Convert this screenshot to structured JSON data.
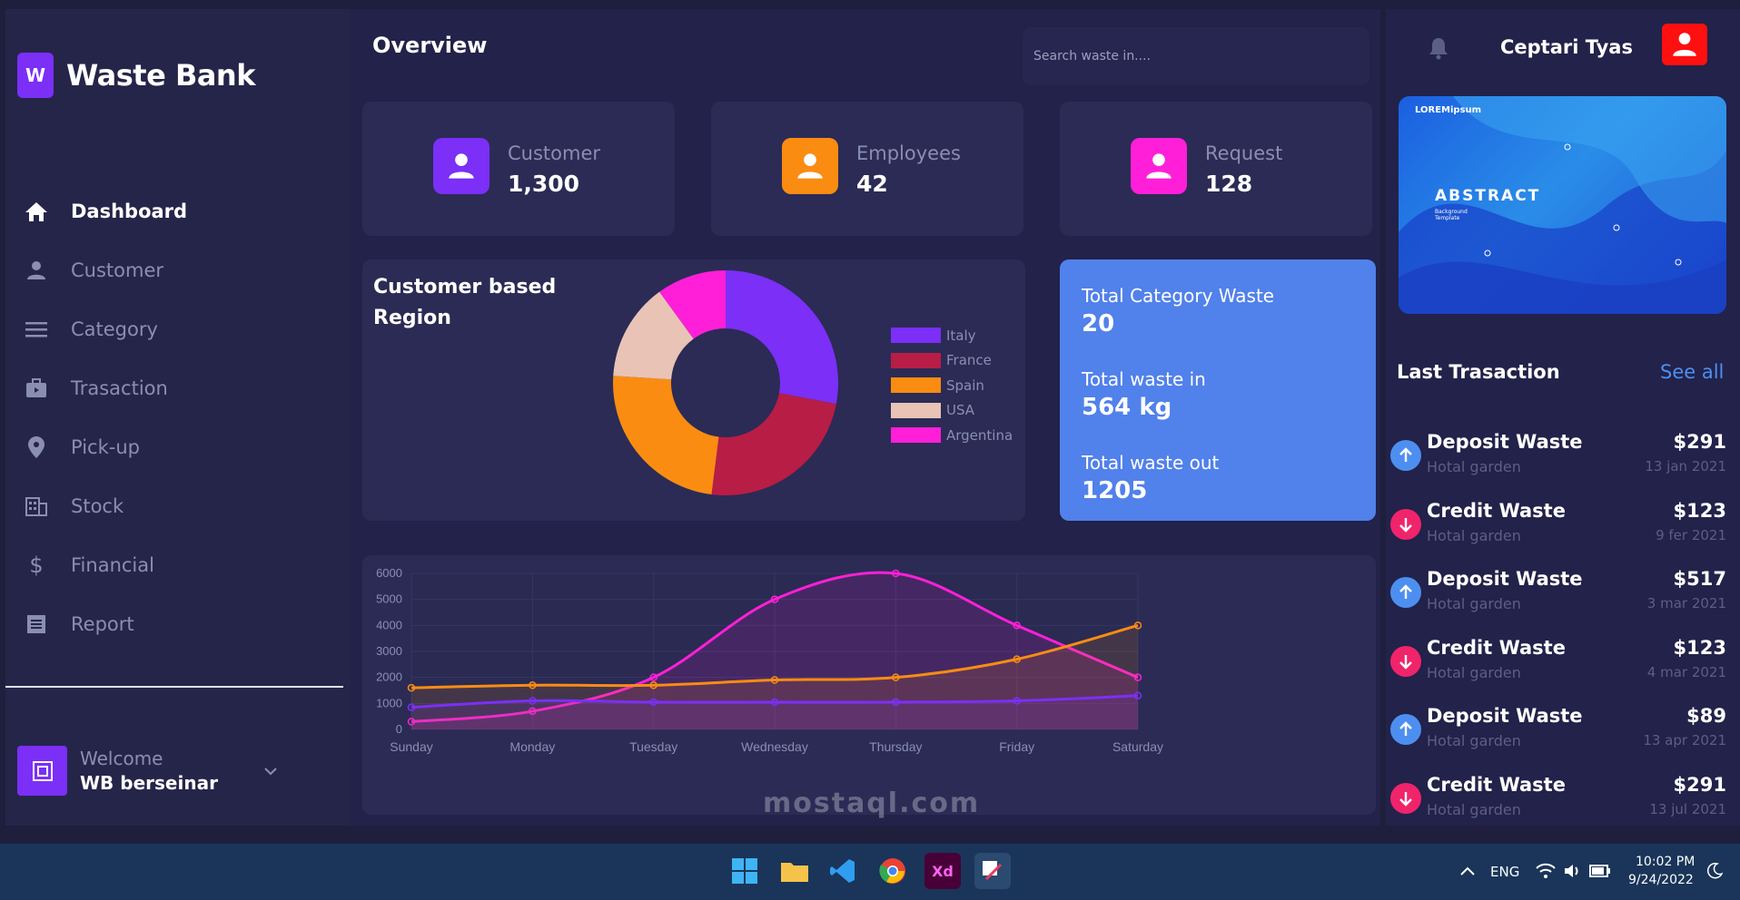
{
  "app": {
    "logo_letter": "W",
    "name": "Waste Bank"
  },
  "sidebar": {
    "items": [
      {
        "label": "Dashboard",
        "icon": "home-icon"
      },
      {
        "label": "Customer",
        "icon": "user-icon"
      },
      {
        "label": "Category",
        "icon": "menu-icon"
      },
      {
        "label": "Trasaction",
        "icon": "briefcase-icon"
      },
      {
        "label": "Pick-up",
        "icon": "location-pin-icon"
      },
      {
        "label": "Stock",
        "icon": "building-icon"
      },
      {
        "label": "Financial",
        "icon": "dollar-icon"
      },
      {
        "label": "Report",
        "icon": "document-icon"
      }
    ],
    "welcome_label": "Welcome",
    "welcome_name": "WB berseinar"
  },
  "header": {
    "title": "Overview",
    "search_placeholder": "Search waste in...."
  },
  "stats": [
    {
      "label": "Customer",
      "value": "1,300",
      "color": "#7b2ff7"
    },
    {
      "label": "Employees",
      "value": "42",
      "color": "#fb8c12"
    },
    {
      "label": "Request",
      "value": "128",
      "color": "#ff1fd8"
    }
  ],
  "region": {
    "title": "Customer based Region",
    "chart_data": {
      "type": "pie",
      "categories": [
        "Italy",
        "France",
        "Spain",
        "USA",
        "Argentina"
      ],
      "values": [
        28,
        24,
        24,
        14,
        10
      ],
      "colors": [
        "#7b2ff7",
        "#b81d45",
        "#fb8c12",
        "#e8c3b6",
        "#ff1fd8"
      ],
      "legend": "right"
    }
  },
  "totals": {
    "category_label": "Total Category Waste",
    "category_value": "20",
    "in_label": "Total waste in",
    "in_value": "564 kg",
    "out_label": "Total waste out",
    "out_value": "1205"
  },
  "weekly_chart": {
    "chart_data": {
      "type": "line",
      "categories": [
        "Sunday",
        "Monday",
        "Tuesday",
        "Wednesday",
        "Thursday",
        "Friday",
        "Saturday"
      ],
      "ylim": [
        0,
        6000
      ],
      "yticks": [
        0,
        1000,
        2000,
        3000,
        4000,
        5000,
        6000
      ],
      "series": [
        {
          "values": [
            300,
            700,
            2000,
            5000,
            6000,
            4000,
            2000
          ],
          "color": "#ff1fd8"
        },
        {
          "values": [
            1600,
            1700,
            1700,
            1900,
            2000,
            2700,
            4000
          ],
          "color": "#fb8c12"
        },
        {
          "values": [
            850,
            1100,
            1050,
            1050,
            1050,
            1100,
            1300
          ],
          "color": "#7b2ff7"
        }
      ],
      "grid": true
    }
  },
  "user": {
    "name": "Ceptari Tyas"
  },
  "banner": {
    "brand": "LOREMipsum",
    "title": "ABSTRACT",
    "subtitle": "Background Template"
  },
  "transactions": {
    "title": "Last Trasaction",
    "see_all": "See all",
    "items": [
      {
        "type": "deposit",
        "title": "Deposit Waste",
        "sub": "Hotal garden",
        "amount": "$291",
        "date": "13 jan 2021"
      },
      {
        "type": "credit",
        "title": "Credit Waste",
        "sub": "Hotal garden",
        "amount": "$123",
        "date": "9 fer 2021"
      },
      {
        "type": "deposit",
        "title": "Deposit Waste",
        "sub": "Hotal garden",
        "amount": "$517",
        "date": "3 mar 2021"
      },
      {
        "type": "credit",
        "title": "Credit Waste",
        "sub": "Hotal garden",
        "amount": "$123",
        "date": "4 mar 2021"
      },
      {
        "type": "deposit",
        "title": "Deposit Waste",
        "sub": "Hotal garden",
        "amount": "$89",
        "date": "13 apr 2021"
      },
      {
        "type": "credit",
        "title": "Credit Waste",
        "sub": "Hotal garden",
        "amount": "$291",
        "date": "13 jul 2021"
      }
    ]
  },
  "taskbar": {
    "lang": "ENG",
    "time": "10:02 PM",
    "date": "9/24/2022",
    "xd_label": "Xd"
  },
  "watermark": "mostaql.com"
}
